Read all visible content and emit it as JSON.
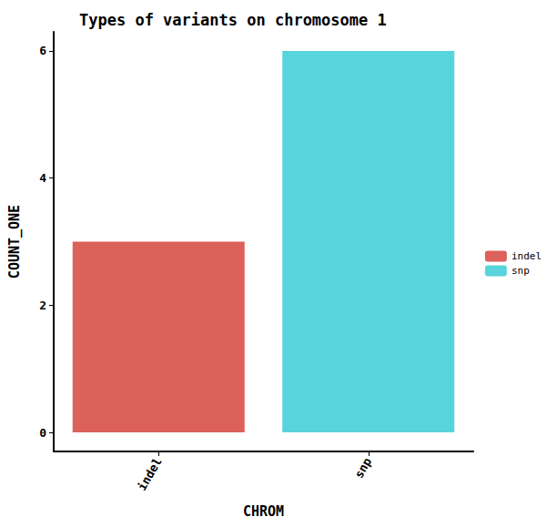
{
  "chart_data": {
    "type": "bar",
    "title": "Types of variants on chromosome 1",
    "x_label": "CHROM",
    "y_label": "COUNT_ONE",
    "categories": [
      "indel",
      "snp"
    ],
    "values": [
      3,
      6
    ],
    "colors": [
      "#dc615b",
      "#58d4dc"
    ],
    "ylim": [
      -0.3,
      6.3
    ],
    "yticks": [
      0,
      2,
      4,
      6
    ],
    "grid": false,
    "legend": "right"
  }
}
